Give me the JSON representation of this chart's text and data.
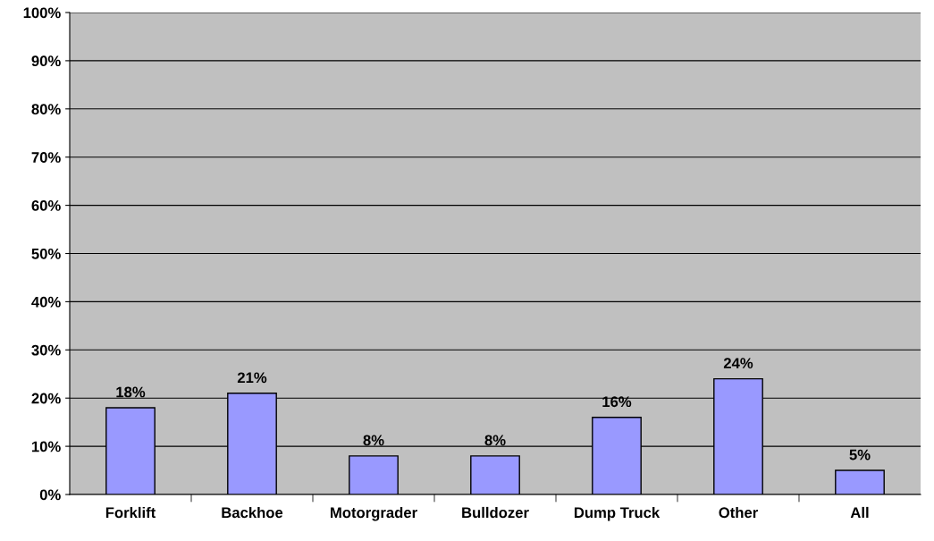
{
  "chart_data": {
    "type": "bar",
    "categories": [
      "Forklift",
      "Backhoe",
      "Motorgrader",
      "Bulldozer",
      "Dump Truck",
      "Other",
      "All"
    ],
    "values": [
      18,
      21,
      8,
      8,
      16,
      24,
      5
    ],
    "color": "#9999ff",
    "data_labels": true,
    "value_labels": [
      "18%",
      "21%",
      "8%",
      "8%",
      "16%",
      "24%",
      "5%"
    ],
    "ylim": [
      0,
      100
    ],
    "yticks": [
      {
        "value": 0,
        "label": "0%"
      },
      {
        "value": 10,
        "label": "10%"
      },
      {
        "value": 20,
        "label": "20%"
      },
      {
        "value": 30,
        "label": "30%"
      },
      {
        "value": 40,
        "label": "40%"
      },
      {
        "value": 50,
        "label": "50%"
      },
      {
        "value": 60,
        "label": "60%"
      },
      {
        "value": 70,
        "label": "70%"
      },
      {
        "value": 80,
        "label": "80%"
      },
      {
        "value": 90,
        "label": "90%"
      },
      {
        "value": 100,
        "label": "100%"
      }
    ],
    "grid": "y",
    "legend": false
  }
}
